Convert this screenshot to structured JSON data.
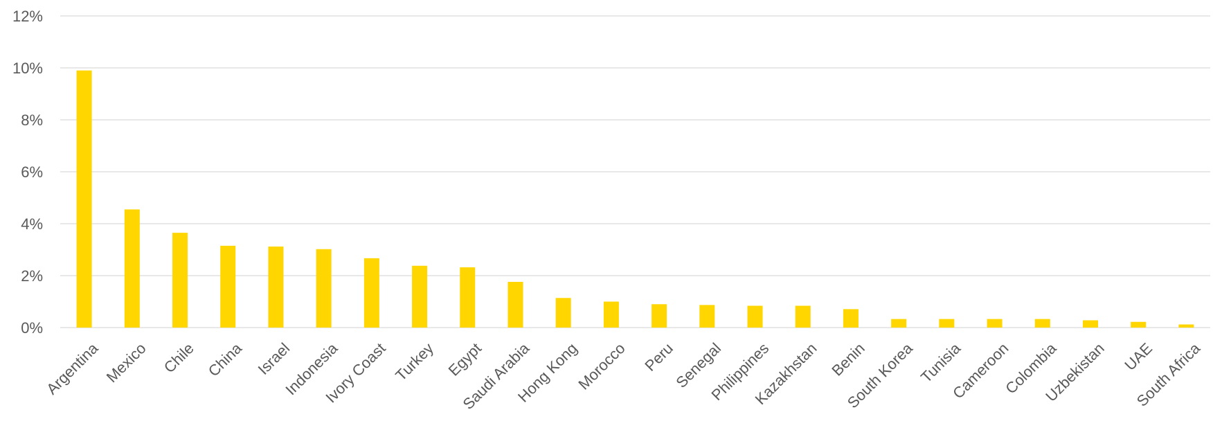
{
  "chart_data": {
    "type": "bar",
    "title": "",
    "xlabel": "",
    "ylabel": "",
    "ylim": [
      0,
      12
    ],
    "yticks": [
      0,
      2,
      4,
      6,
      8,
      10,
      12
    ],
    "ytick_labels": [
      "0%",
      "2%",
      "4%",
      "6%",
      "8%",
      "10%",
      "12%"
    ],
    "grid": true,
    "legend": "none",
    "bar_color": "#FFD600",
    "categories": [
      "Argentina",
      "Mexico",
      "Chile",
      "China",
      "Israel",
      "Indonesia",
      "Ivory Coast",
      "Turkey",
      "Egypt",
      "Saudi Arabia",
      "Hong Kong",
      "Morocco",
      "Peru",
      "Senegal",
      "Philippines",
      "Kazakhstan",
      "Benin",
      "South Korea",
      "Tunisia",
      "Cameroon",
      "Colombia",
      "Uzbekistan",
      "UAE",
      "South Africa"
    ],
    "values": [
      9.9,
      4.55,
      3.65,
      3.15,
      3.12,
      3.02,
      2.67,
      2.38,
      2.32,
      1.76,
      1.14,
      1.0,
      0.9,
      0.87,
      0.84,
      0.84,
      0.71,
      0.33,
      0.33,
      0.33,
      0.33,
      0.28,
      0.22,
      0.12
    ]
  }
}
